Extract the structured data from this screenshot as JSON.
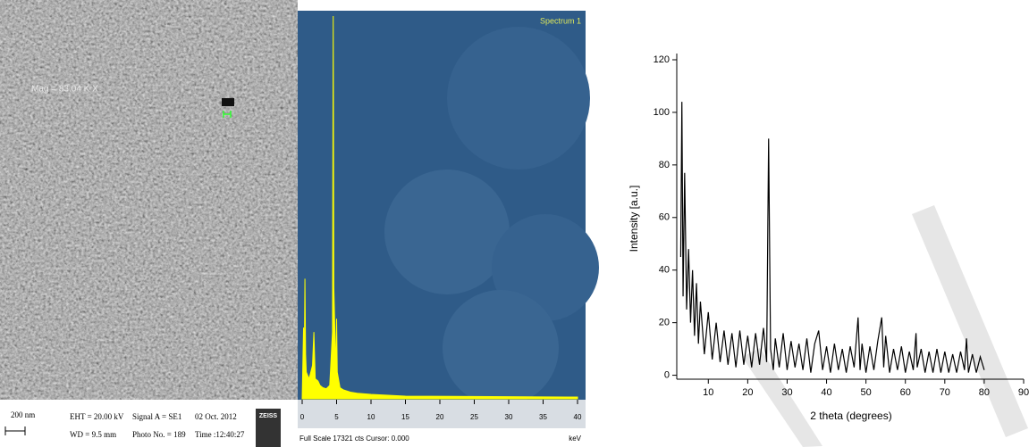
{
  "sem": {
    "magnification": "Mag = 83.04 K X",
    "scale": "200 nm",
    "info": [
      "EHT = 20.00 kV",
      "WD = 9.5 mm",
      "Signal A = SE1",
      "Photo No. = 189",
      "02 Oct. 2012",
      "Time :12:40:27"
    ],
    "logo": "ZEISS"
  },
  "chart_data": [
    {
      "type": "area",
      "title": "Spectrum 1",
      "color": "#ffff00",
      "x": [
        0,
        0.2,
        0.3,
        0.4,
        0.5,
        0.6,
        1.0,
        1.5,
        1.7,
        1.9,
        2.3,
        2.6,
        3.0,
        3.5,
        4.0,
        4.4,
        4.51,
        4.6,
        4.9,
        5.0,
        5.1,
        5.5,
        6.0,
        7,
        8,
        10,
        15,
        40
      ],
      "values": [
        0,
        3200,
        1500,
        5400,
        2000,
        1200,
        900,
        1500,
        3000,
        900,
        800,
        600,
        500,
        450,
        600,
        3000,
        17200,
        5000,
        1200,
        3600,
        1200,
        500,
        400,
        300,
        250,
        200,
        120,
        80
      ],
      "xlim": [
        0,
        40
      ],
      "ylim": [
        0,
        17321
      ],
      "xticks": [
        0,
        5,
        10,
        15,
        20,
        25,
        30,
        35,
        40
      ],
      "footer": "Full Scale 17321 cts Cursor: 0.000",
      "x_unit": "keV"
    },
    {
      "type": "line",
      "x_label": "2 theta (degrees)",
      "y_label": "Intensity [a.u.]",
      "color": "#000000",
      "x": [
        3,
        3.3,
        3.6,
        4,
        4.5,
        5,
        5.5,
        6,
        6.5,
        7,
        7.5,
        8,
        9,
        10,
        11,
        12,
        13,
        14,
        15,
        16,
        17,
        18,
        19,
        20,
        21,
        22,
        23,
        24,
        24.8,
        25.3,
        25.8,
        26.5,
        27,
        28,
        29,
        30,
        31,
        32,
        33,
        34,
        35,
        36,
        37,
        38,
        39,
        40,
        41,
        42,
        43,
        44,
        45,
        46,
        47,
        48,
        48.5,
        49,
        50,
        51,
        52,
        53,
        54,
        54.5,
        55,
        56,
        57,
        58,
        59,
        60,
        61,
        62,
        62.7,
        63,
        64,
        65,
        66,
        67,
        68,
        69,
        70,
        71,
        72,
        73,
        74,
        75,
        75.5,
        76,
        77,
        78,
        79,
        80
      ],
      "values": [
        45,
        104,
        30,
        77,
        25,
        48,
        20,
        40,
        15,
        35,
        12,
        28,
        8,
        24,
        6,
        20,
        5,
        17,
        4,
        16,
        3,
        17,
        4,
        15,
        3,
        16,
        4,
        18,
        5,
        90,
        10,
        2,
        14,
        3,
        16,
        2,
        13,
        3,
        12,
        2,
        14,
        1,
        12,
        17,
        2,
        11,
        1,
        12,
        2,
        10,
        1,
        11,
        3,
        22,
        2,
        12,
        1,
        11,
        2,
        13,
        22,
        3,
        15,
        1,
        10,
        2,
        11,
        1,
        9,
        2,
        16,
        3,
        10,
        1,
        9,
        1,
        10,
        1,
        9,
        1,
        8,
        1,
        9,
        2,
        14,
        1,
        8,
        1,
        7,
        2
      ],
      "xlim": [
        2,
        90
      ],
      "ylim": [
        -1.5,
        120
      ],
      "xticks": [
        10,
        20,
        30,
        40,
        50,
        60,
        70,
        80,
        90
      ],
      "yticks": [
        0,
        20,
        40,
        60,
        80,
        100,
        120
      ]
    }
  ]
}
